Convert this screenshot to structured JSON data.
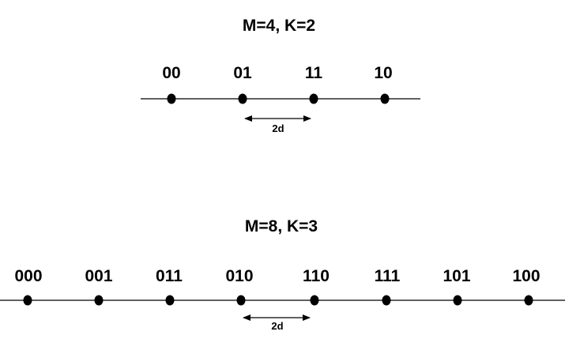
{
  "colors": {
    "background": "#ffffff",
    "ink": "#000000"
  },
  "constellations": [
    {
      "title": "M=4, K=2",
      "labels": [
        "00",
        "01",
        "11",
        "10"
      ],
      "distance_label": "2d"
    },
    {
      "title": "M=8, K=3",
      "labels": [
        "000",
        "001",
        "011",
        "010",
        "110",
        "111",
        "101",
        "100"
      ],
      "distance_label": "2d"
    }
  ]
}
